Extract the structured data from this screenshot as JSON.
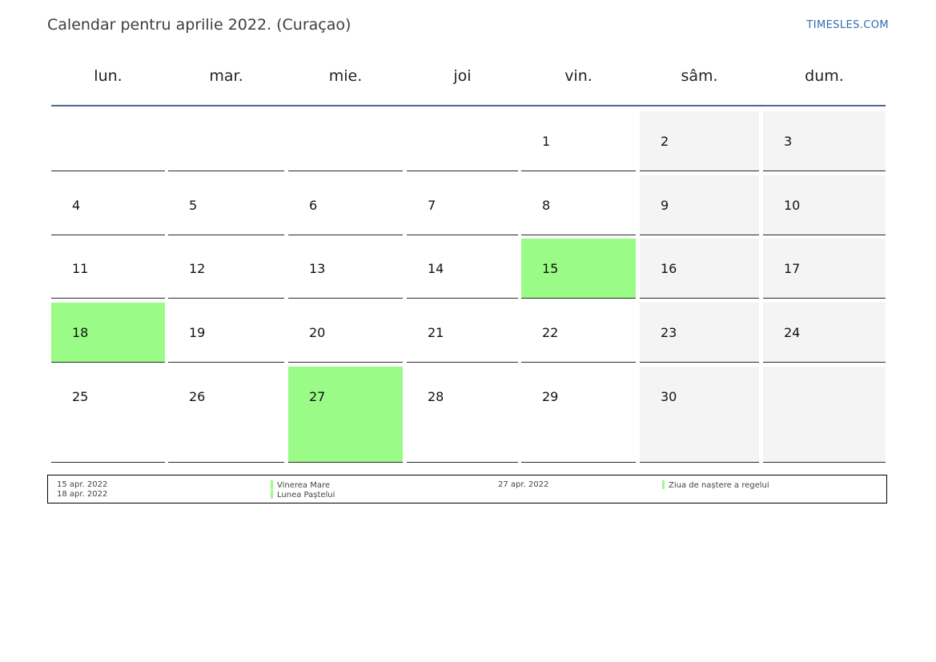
{
  "header": {
    "title": "Calendar pentru aprilie 2022. (Curaçao)",
    "brand": "TIMESLES.COM"
  },
  "weekdays": [
    "lun.",
    "mar.",
    "mie.",
    "joi",
    "vin.",
    "sâm.",
    "dum."
  ],
  "weeks": [
    [
      "",
      "",
      "",
      "",
      "1",
      "2",
      "3"
    ],
    [
      "4",
      "5",
      "6",
      "7",
      "8",
      "9",
      "10"
    ],
    [
      "11",
      "12",
      "13",
      "14",
      "15",
      "16",
      "17"
    ],
    [
      "18",
      "19",
      "20",
      "21",
      "22",
      "23",
      "24"
    ],
    [
      "25",
      "26",
      "27",
      "28",
      "29",
      "30",
      ""
    ]
  ],
  "holiday_days": [
    "15",
    "18",
    "27"
  ],
  "colors": {
    "holiday": "#9afb87",
    "weekend": "#f4f4f4",
    "header_line": "#4b6a8f",
    "brand": "#2f6fae"
  },
  "legend": {
    "dates_col1": [
      "15 apr. 2022",
      "18 apr. 2022"
    ],
    "names_col1": [
      "Vinerea Mare",
      "Lunea Paștelui"
    ],
    "dates_col2": [
      "27 apr. 2022"
    ],
    "names_col2": [
      "Ziua de naștere a regelui"
    ]
  }
}
